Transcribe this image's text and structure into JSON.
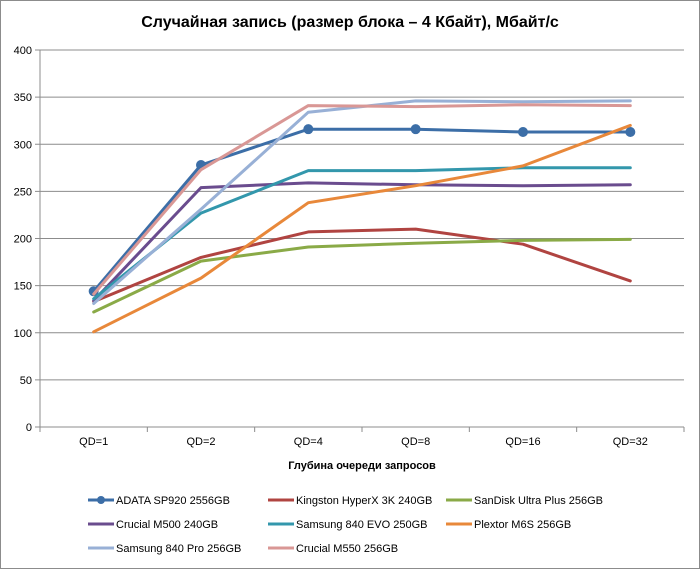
{
  "chart_data": {
    "type": "line",
    "title": "Случайная запись (размер блока – 4 Кбайт), Мбайт/с",
    "xlabel": "Глубина очереди запросов",
    "ylabel": "",
    "categories": [
      "QD=1",
      "QD=2",
      "QD=4",
      "QD=8",
      "QD=16",
      "QD=32"
    ],
    "ylim": [
      0,
      400
    ],
    "yticks": [
      0,
      50,
      100,
      150,
      200,
      250,
      300,
      350,
      400
    ],
    "grid": "horizontal",
    "legend_position": "bottom",
    "series": [
      {
        "name": "ADATA SP920 2556GB",
        "color": "#3c6ea7",
        "markers": true,
        "values": [
          144,
          278,
          316,
          316,
          313,
          313
        ]
      },
      {
        "name": "Kingston HyperX 3K 240GB",
        "color": "#b04441",
        "markers": false,
        "values": [
          133,
          180,
          207,
          210,
          194,
          155
        ]
      },
      {
        "name": "SanDisk Ultra Plus 256GB",
        "color": "#8aaa47",
        "markers": false,
        "values": [
          122,
          176,
          191,
          195,
          198,
          199
        ]
      },
      {
        "name": "Crucial M500 240GB",
        "color": "#6a4c8e",
        "markers": false,
        "values": [
          134,
          254,
          259,
          257,
          256,
          257
        ]
      },
      {
        "name": "Samsung 840 EVO 250GB",
        "color": "#3397ac",
        "markers": false,
        "values": [
          136,
          227,
          272,
          272,
          275,
          275
        ]
      },
      {
        "name": "Plextor M6S 256GB",
        "color": "#e8883a",
        "markers": false,
        "values": [
          101,
          158,
          238,
          256,
          277,
          320
        ]
      },
      {
        "name": "Samsung 840 Pro 256GB",
        "color": "#98b0d6",
        "markers": false,
        "values": [
          131,
          231,
          334,
          346,
          345,
          346
        ]
      },
      {
        "name": "Crucial M550 256GB",
        "color": "#d99795",
        "markers": false,
        "values": [
          141,
          273,
          341,
          340,
          342,
          341
        ]
      }
    ]
  }
}
